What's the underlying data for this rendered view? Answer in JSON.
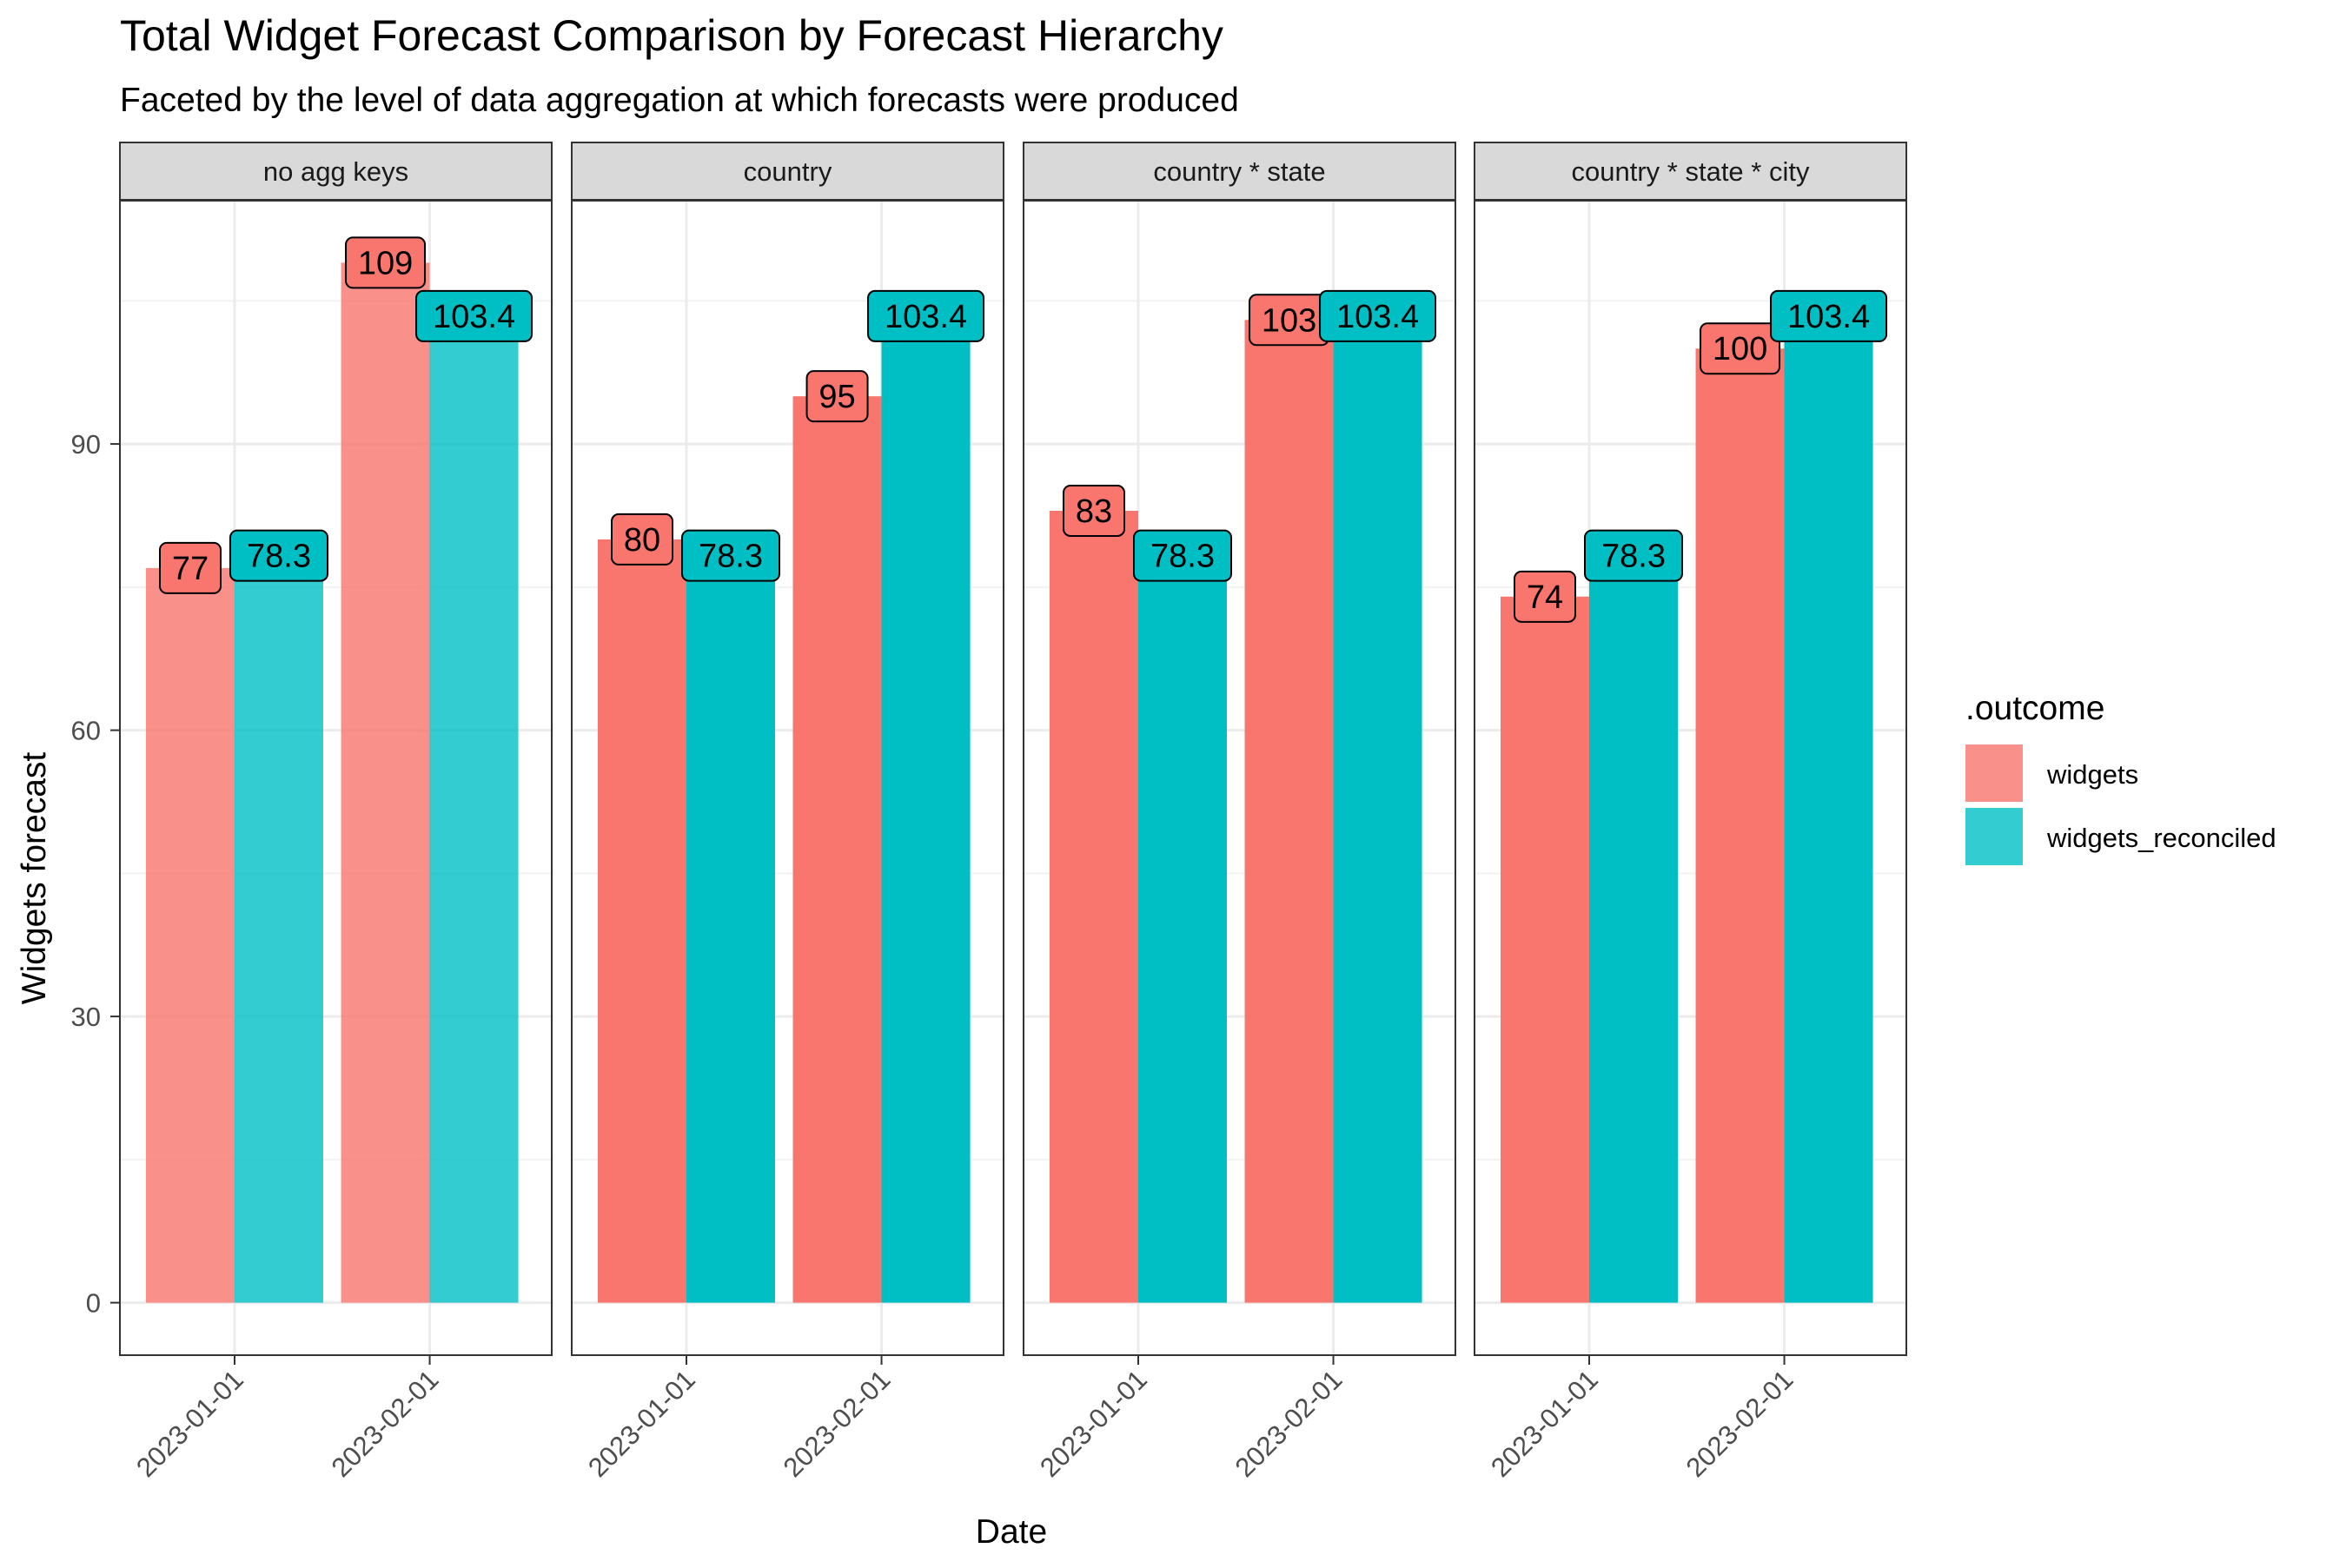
{
  "chart_data": {
    "type": "bar",
    "title": "Total Widget Forecast Comparison by Forecast Hierarchy",
    "subtitle": "Faceted by the level of data aggregation at which forecasts were produced",
    "xlabel": "Date",
    "ylabel": "Widgets forecast",
    "categories": [
      "2023-01-01",
      "2023-02-01"
    ],
    "y_ticks": [
      0,
      30,
      60,
      90
    ],
    "ylim": [
      -5.5,
      115.5
    ],
    "grid": true,
    "legend": {
      "title": ".outcome",
      "position": "right",
      "entries": [
        "widgets",
        "widgets_reconciled"
      ]
    },
    "series_colors": [
      "#F8766D",
      "#00BFC4"
    ],
    "facets": [
      {
        "label": "no agg keys",
        "faded": true,
        "series": [
          {
            "name": "widgets",
            "values": [
              77,
              109
            ],
            "labels": [
              "77",
              "109"
            ]
          },
          {
            "name": "widgets_reconciled",
            "values": [
              78.3,
              103.4
            ],
            "labels": [
              "78.3",
              "103.4"
            ]
          }
        ]
      },
      {
        "label": "country",
        "faded": false,
        "series": [
          {
            "name": "widgets",
            "values": [
              80,
              95
            ],
            "labels": [
              "80",
              "95"
            ]
          },
          {
            "name": "widgets_reconciled",
            "values": [
              78.3,
              103.4
            ],
            "labels": [
              "78.3",
              "103.4"
            ]
          }
        ]
      },
      {
        "label": "country * state",
        "faded": false,
        "series": [
          {
            "name": "widgets",
            "values": [
              83,
              103
            ],
            "labels": [
              "83",
              "103"
            ]
          },
          {
            "name": "widgets_reconciled",
            "values": [
              78.3,
              103.4
            ],
            "labels": [
              "78.3",
              "103.4"
            ]
          }
        ]
      },
      {
        "label": "country * state * city",
        "faded": false,
        "series": [
          {
            "name": "widgets",
            "values": [
              74,
              100
            ],
            "labels": [
              "74",
              "100"
            ]
          },
          {
            "name": "widgets_reconciled",
            "values": [
              78.3,
              103.4
            ],
            "labels": [
              "78.3",
              "103.4"
            ]
          }
        ]
      }
    ]
  }
}
